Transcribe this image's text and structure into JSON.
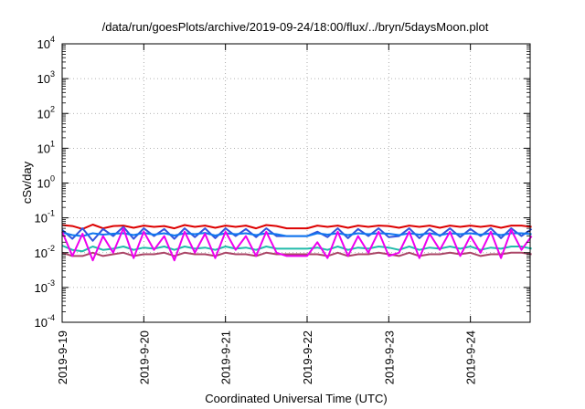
{
  "chart_data": {
    "type": "line",
    "title": "/data/run/goesPlots/archive/2019-09-24/18:00/flux/../bryn/5daysMoon.plot",
    "xlabel": "Coordinated Universal Time (UTC)",
    "ylabel": "cSv/day",
    "yscale": "log",
    "ylim": [
      0.0001,
      10000
    ],
    "xlim": [
      "2019-09-19T00:00",
      "2019-09-24T18:00"
    ],
    "grid": true,
    "legend": "none",
    "x_ticks": [
      "2019-9-19",
      "2019-9-20",
      "2019-9-21",
      "2019-9-22",
      "2019-9-23",
      "2019-9-24"
    ],
    "y_ticks": [
      {
        "base": "10",
        "exp": "-4"
      },
      {
        "base": "10",
        "exp": "-3"
      },
      {
        "base": "10",
        "exp": "-2"
      },
      {
        "base": "10",
        "exp": "-1"
      },
      {
        "base": "10",
        "exp": "0"
      },
      {
        "base": "10",
        "exp": "1"
      },
      {
        "base": "10",
        "exp": "2"
      },
      {
        "base": "10",
        "exp": "3"
      },
      {
        "base": "10",
        "exp": "4"
      }
    ],
    "x_hours": [
      0,
      3,
      6,
      9,
      12,
      15,
      18,
      21,
      24,
      27,
      30,
      33,
      36,
      39,
      42,
      45,
      48,
      51,
      54,
      57,
      60,
      63,
      66,
      69,
      72,
      75,
      78,
      81,
      84,
      87,
      90,
      93,
      96,
      99,
      102,
      105,
      108,
      111,
      114,
      117,
      120,
      123,
      126,
      129,
      132,
      135,
      138
    ],
    "series": [
      {
        "color": "#dd0000",
        "values": [
          0.062,
          0.058,
          0.048,
          0.064,
          0.05,
          0.058,
          0.06,
          0.052,
          0.06,
          0.055,
          0.058,
          0.05,
          0.062,
          0.055,
          0.06,
          0.052,
          0.06,
          0.055,
          0.06,
          0.05,
          0.062,
          0.058,
          0.05,
          0.05,
          0.05,
          0.06,
          0.055,
          0.06,
          0.052,
          0.06,
          0.055,
          0.06,
          0.058,
          0.052,
          0.06,
          0.055,
          0.06,
          0.052,
          0.06,
          0.055,
          0.06,
          0.055,
          0.06,
          0.052,
          0.06,
          0.06,
          0.055
        ]
      },
      {
        "color": "#3355dd",
        "values": [
          0.045,
          0.025,
          0.05,
          0.022,
          0.048,
          0.03,
          0.055,
          0.025,
          0.05,
          0.03,
          0.048,
          0.025,
          0.05,
          0.028,
          0.05,
          0.026,
          0.05,
          0.03,
          0.048,
          0.028,
          0.05,
          0.03,
          0.03,
          0.03,
          0.03,
          0.04,
          0.028,
          0.05,
          0.026,
          0.048,
          0.03,
          0.05,
          0.028,
          0.03,
          0.05,
          0.026,
          0.048,
          0.03,
          0.05,
          0.028,
          0.048,
          0.03,
          0.05,
          0.026,
          0.05,
          0.03,
          0.048
        ]
      },
      {
        "color": "#1177ee",
        "values": [
          0.038,
          0.032,
          0.03,
          0.036,
          0.033,
          0.035,
          0.036,
          0.032,
          0.037,
          0.033,
          0.036,
          0.031,
          0.036,
          0.034,
          0.037,
          0.031,
          0.036,
          0.034,
          0.036,
          0.032,
          0.036,
          0.034,
          0.03,
          0.03,
          0.03,
          0.036,
          0.033,
          0.036,
          0.032,
          0.036,
          0.034,
          0.036,
          0.035,
          0.032,
          0.036,
          0.033,
          0.036,
          0.032,
          0.036,
          0.034,
          0.036,
          0.033,
          0.036,
          0.032,
          0.036,
          0.036,
          0.034
        ]
      },
      {
        "color": "#22bbaa",
        "values": [
          0.016,
          0.012,
          0.011,
          0.015,
          0.012,
          0.013,
          0.015,
          0.012,
          0.014,
          0.013,
          0.015,
          0.012,
          0.015,
          0.013,
          0.014,
          0.012,
          0.015,
          0.013,
          0.014,
          0.012,
          0.015,
          0.013,
          0.013,
          0.013,
          0.013,
          0.014,
          0.012,
          0.015,
          0.012,
          0.014,
          0.013,
          0.015,
          0.014,
          0.012,
          0.015,
          0.012,
          0.014,
          0.013,
          0.015,
          0.013,
          0.015,
          0.012,
          0.014,
          0.013,
          0.015,
          0.015,
          0.013
        ]
      },
      {
        "color": "#aa4466",
        "values": [
          0.01,
          0.008,
          0.008,
          0.01,
          0.008,
          0.009,
          0.01,
          0.008,
          0.009,
          0.009,
          0.01,
          0.008,
          0.01,
          0.009,
          0.009,
          0.008,
          0.01,
          0.009,
          0.009,
          0.008,
          0.01,
          0.009,
          0.009,
          0.009,
          0.009,
          0.009,
          0.008,
          0.01,
          0.008,
          0.009,
          0.009,
          0.01,
          0.009,
          0.008,
          0.01,
          0.008,
          0.009,
          0.009,
          0.01,
          0.009,
          0.01,
          0.008,
          0.009,
          0.009,
          0.01,
          0.01,
          0.009
        ]
      },
      {
        "color": "#ee00ee",
        "values": [
          0.04,
          0.008,
          0.035,
          0.006,
          0.03,
          0.01,
          0.05,
          0.007,
          0.04,
          0.012,
          0.03,
          0.006,
          0.04,
          0.01,
          0.035,
          0.007,
          0.04,
          0.012,
          0.03,
          0.008,
          0.04,
          0.01,
          0.008,
          0.008,
          0.008,
          0.02,
          0.007,
          0.04,
          0.008,
          0.03,
          0.01,
          0.04,
          0.008,
          0.01,
          0.04,
          0.007,
          0.035,
          0.012,
          0.04,
          0.008,
          0.03,
          0.01,
          0.04,
          0.007,
          0.045,
          0.012,
          0.03
        ]
      }
    ]
  }
}
